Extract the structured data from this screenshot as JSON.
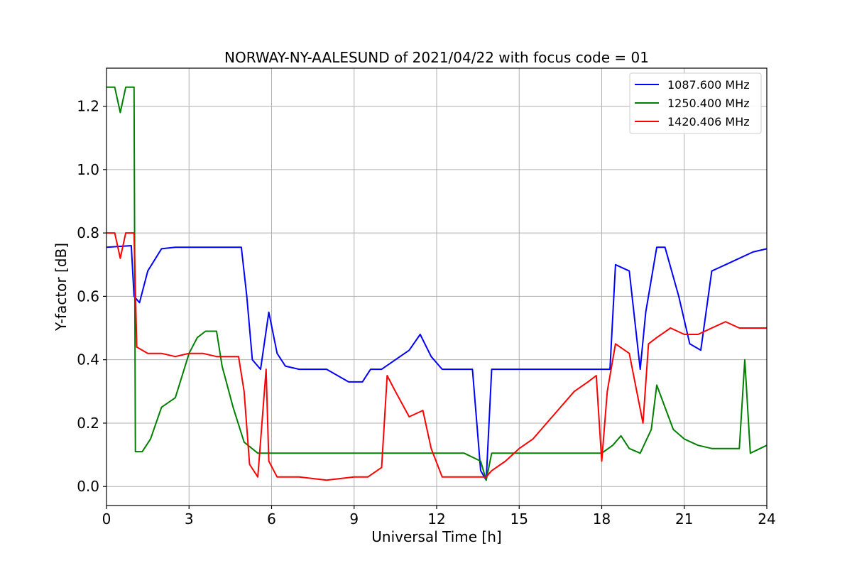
{
  "chart_data": {
    "type": "line",
    "title": "NORWAY-NY-AALESUND of 2021/04/22 with focus code = 01",
    "xlabel": "Universal Time [h]",
    "ylabel": "Y-factor [dB]",
    "xlim": [
      0,
      24
    ],
    "ylim": [
      -0.06,
      1.32
    ],
    "xticks": [
      0,
      3,
      6,
      9,
      12,
      15,
      18,
      21,
      24
    ],
    "yticks": [
      0.0,
      0.2,
      0.4,
      0.6,
      0.8,
      1.0,
      1.2
    ],
    "xtick_labels": [
      "0",
      "3",
      "6",
      "9",
      "12",
      "15",
      "18",
      "21",
      "24"
    ],
    "ytick_labels": [
      "0.0",
      "0.2",
      "0.4",
      "0.6",
      "0.8",
      "1.0",
      "1.2"
    ],
    "grid": true,
    "legend_position": "top-right",
    "series": [
      {
        "name": "1087.600 MHz",
        "color": "#0000ff",
        "x": [
          0,
          0.9,
          1.0,
          1.2,
          1.5,
          2.0,
          2.5,
          3.0,
          3.5,
          4.5,
          4.9,
          5.1,
          5.3,
          5.6,
          5.9,
          6.2,
          6.5,
          7.0,
          8.0,
          8.8,
          9.3,
          9.6,
          10.0,
          10.5,
          11.0,
          11.4,
          11.8,
          12.2,
          12.7,
          13.3,
          13.6,
          13.8,
          14.0,
          14.3,
          15.0,
          16.0,
          17.0,
          17.5,
          18.0,
          18.3,
          18.5,
          19.0,
          19.4,
          19.6,
          20.0,
          20.3,
          20.8,
          21.2,
          21.6,
          22.0,
          22.5,
          23.0,
          23.5,
          24.0
        ],
        "values": [
          0.755,
          0.76,
          0.6,
          0.58,
          0.68,
          0.75,
          0.755,
          0.755,
          0.755,
          0.755,
          0.755,
          0.6,
          0.4,
          0.37,
          0.55,
          0.42,
          0.38,
          0.37,
          0.37,
          0.33,
          0.33,
          0.37,
          0.37,
          0.4,
          0.43,
          0.48,
          0.41,
          0.37,
          0.37,
          0.37,
          0.05,
          0.02,
          0.37,
          0.37,
          0.37,
          0.37,
          0.37,
          0.37,
          0.37,
          0.37,
          0.7,
          0.68,
          0.37,
          0.55,
          0.755,
          0.755,
          0.6,
          0.45,
          0.43,
          0.68,
          0.7,
          0.72,
          0.74,
          0.75
        ]
      },
      {
        "name": "1250.400 MHz",
        "color": "#008000",
        "x": [
          0,
          0.3,
          0.5,
          0.7,
          0.9,
          1.0,
          1.05,
          1.3,
          1.6,
          2.0,
          2.5,
          3.0,
          3.3,
          3.6,
          4.0,
          4.2,
          4.6,
          5.0,
          5.5,
          6.0,
          7.0,
          8.0,
          9.0,
          10.0,
          11.0,
          12.0,
          13.0,
          13.6,
          13.8,
          14.0,
          15.0,
          16.0,
          17.0,
          18.0,
          18.4,
          18.7,
          19.0,
          19.4,
          19.8,
          20.0,
          20.3,
          20.6,
          21.0,
          21.5,
          22.0,
          23.0,
          23.2,
          23.4,
          24.0
        ],
        "values": [
          1.26,
          1.26,
          1.18,
          1.26,
          1.26,
          1.26,
          0.11,
          0.11,
          0.15,
          0.25,
          0.28,
          0.42,
          0.47,
          0.49,
          0.49,
          0.38,
          0.25,
          0.14,
          0.105,
          0.105,
          0.105,
          0.105,
          0.105,
          0.105,
          0.105,
          0.105,
          0.105,
          0.08,
          0.02,
          0.105,
          0.105,
          0.105,
          0.105,
          0.105,
          0.13,
          0.16,
          0.12,
          0.105,
          0.18,
          0.32,
          0.25,
          0.18,
          0.15,
          0.13,
          0.12,
          0.12,
          0.4,
          0.105,
          0.13
        ]
      },
      {
        "name": "1420.406 MHz",
        "color": "#ff0000",
        "x": [
          0,
          0.3,
          0.5,
          0.7,
          0.9,
          1.0,
          1.1,
          1.5,
          2.0,
          2.5,
          3.0,
          3.5,
          4.0,
          4.5,
          4.8,
          5.0,
          5.2,
          5.5,
          5.8,
          5.9,
          6.2,
          7.0,
          8.0,
          9.0,
          9.5,
          10.0,
          10.2,
          10.5,
          11.0,
          11.5,
          11.8,
          12.2,
          13.0,
          13.8,
          14.0,
          14.5,
          15.0,
          15.5,
          16.0,
          16.5,
          17.0,
          17.5,
          17.8,
          18.0,
          18.2,
          18.5,
          19.0,
          19.5,
          19.7,
          20.0,
          20.5,
          21.0,
          21.5,
          22.0,
          22.5,
          23.0,
          23.5,
          24.0
        ],
        "values": [
          0.8,
          0.8,
          0.72,
          0.8,
          0.8,
          0.8,
          0.44,
          0.42,
          0.42,
          0.41,
          0.42,
          0.42,
          0.41,
          0.41,
          0.41,
          0.3,
          0.07,
          0.03,
          0.37,
          0.08,
          0.03,
          0.03,
          0.02,
          0.03,
          0.03,
          0.06,
          0.35,
          0.3,
          0.22,
          0.24,
          0.12,
          0.03,
          0.03,
          0.03,
          0.05,
          0.08,
          0.12,
          0.15,
          0.2,
          0.25,
          0.3,
          0.33,
          0.35,
          0.08,
          0.3,
          0.45,
          0.42,
          0.2,
          0.45,
          0.47,
          0.5,
          0.48,
          0.48,
          0.5,
          0.52,
          0.5,
          0.5,
          0.5
        ]
      }
    ]
  }
}
